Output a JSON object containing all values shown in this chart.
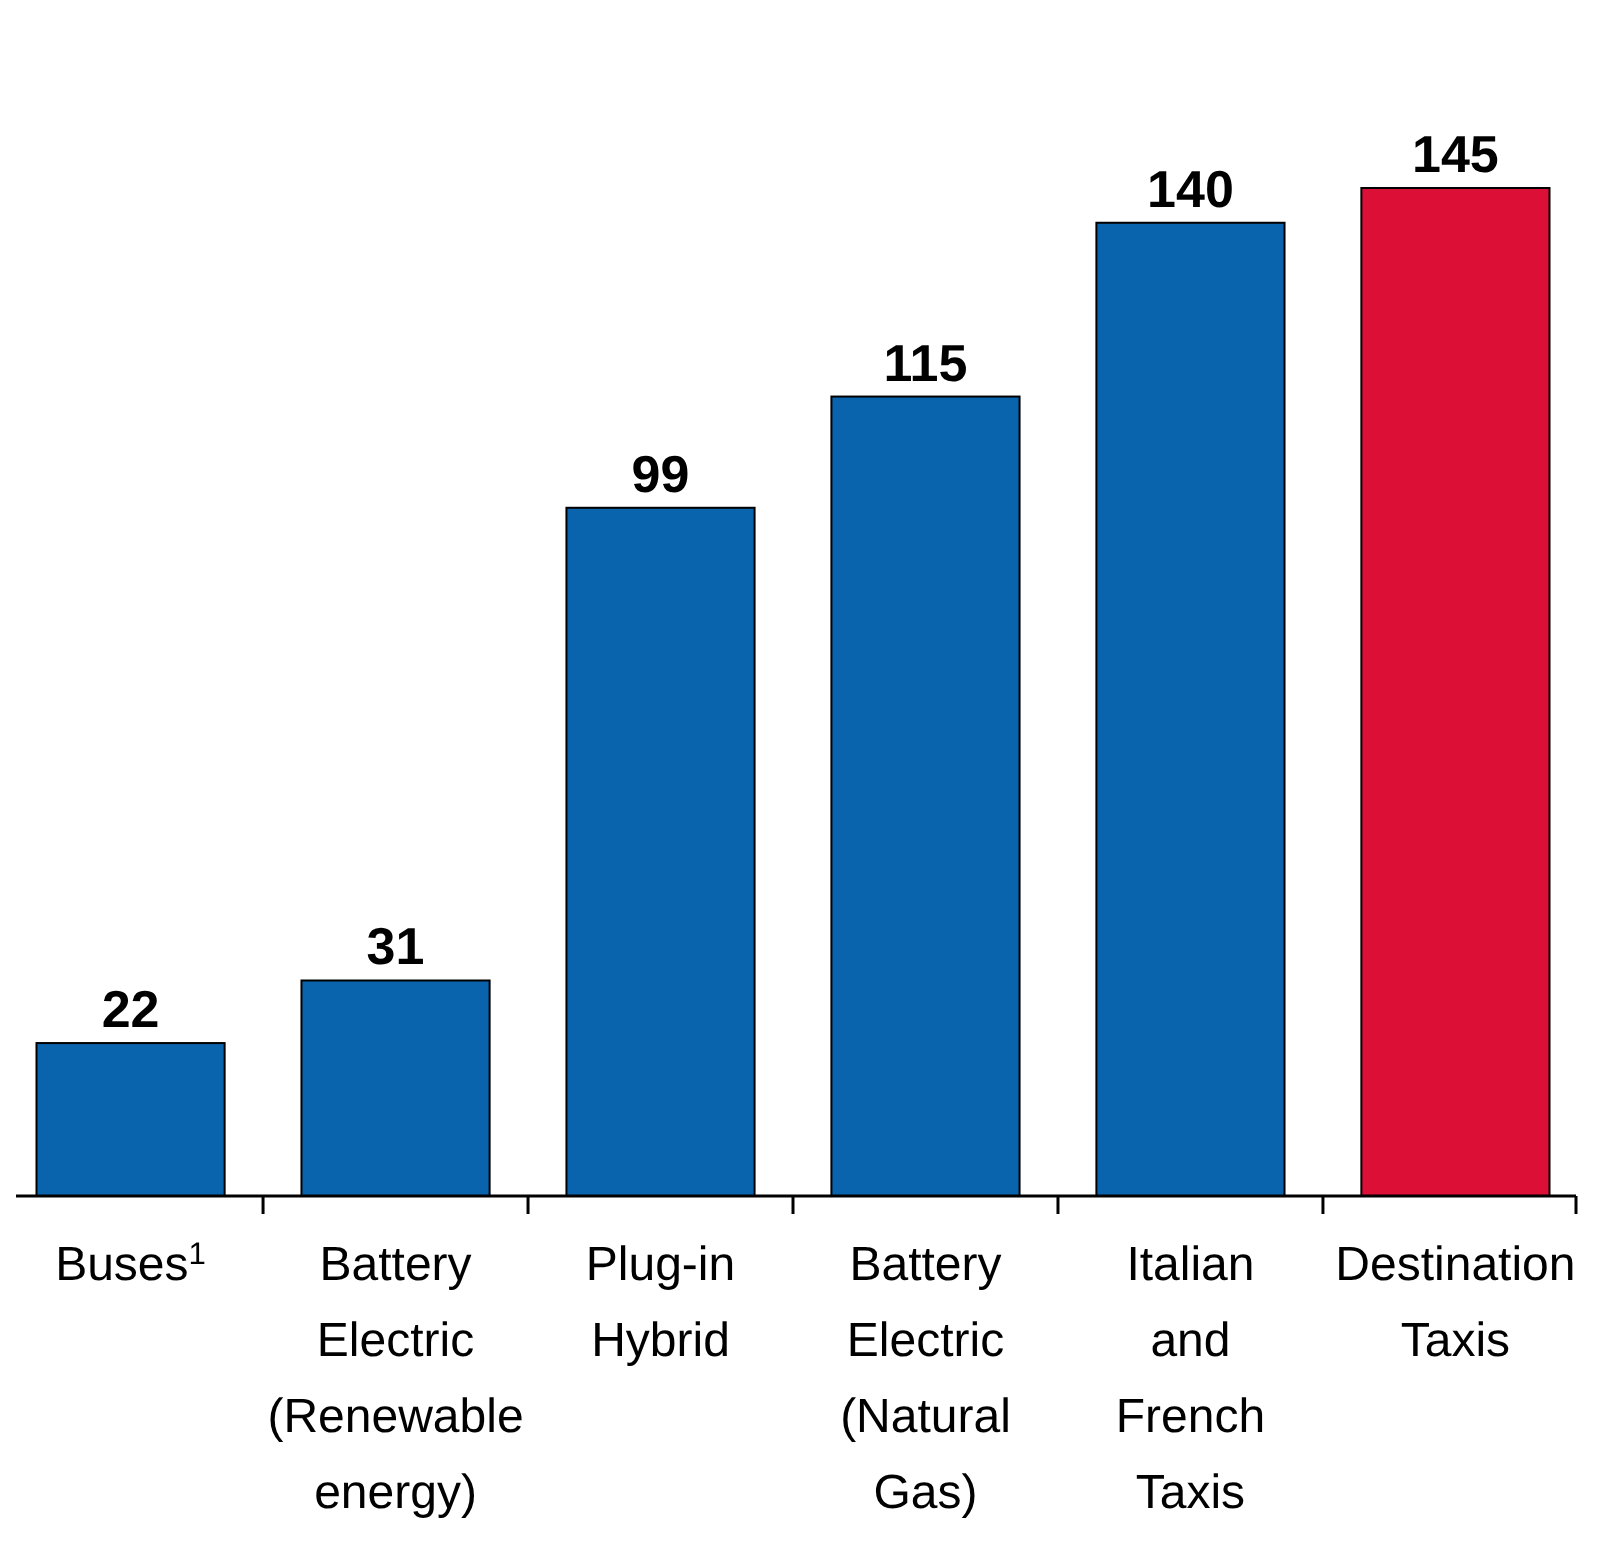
{
  "chart_data": {
    "type": "bar",
    "categories": [
      "Buses$^{1}$",
      "Battery Electric (Renewable energy)",
      "Plug-in Hybrid",
      "Battery Electric (Natural Gas)",
      "Italian and French Taxis",
      "Destination Taxis"
    ],
    "values": [
      22,
      31,
      99,
      115,
      140,
      145
    ],
    "colors": [
      "#0a64ad",
      "#0a64ad",
      "#0a64ad",
      "#0a64ad",
      "#0a64ad",
      "#dc0f37"
    ],
    "data_labels": true
  }
}
